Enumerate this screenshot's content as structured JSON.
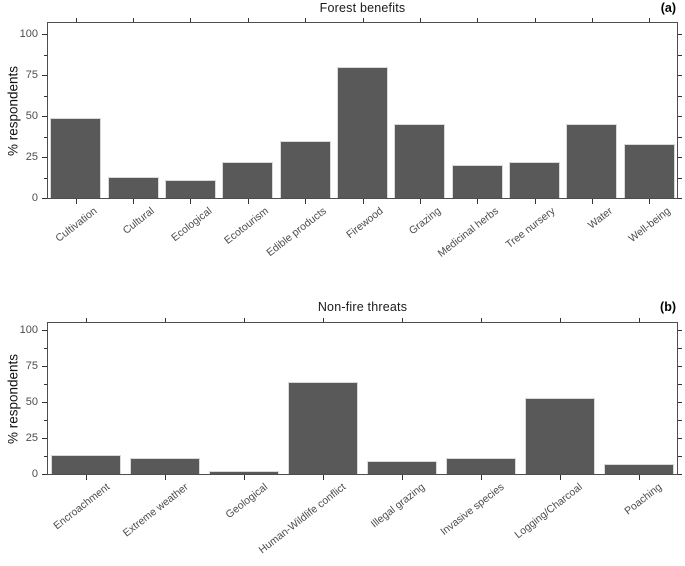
{
  "chart_data": [
    {
      "type": "bar",
      "panel_label": "(a)",
      "title": "Forest benefits",
      "ylabel": "% respondents",
      "xlabel": "",
      "ylim": [
        0,
        100
      ],
      "yticks": [
        0,
        25,
        50,
        75,
        100
      ],
      "grid": "off",
      "legend": "none",
      "bar_color": "#595959",
      "categories": [
        "Cultivation",
        "Cultural",
        "Ecological",
        "Ecotourism",
        "Edible products",
        "Firewood",
        "Grazing",
        "Medicinal herbs",
        "Tree nursery",
        "Water",
        "Well-being"
      ],
      "values": [
        49,
        13,
        11,
        22,
        35,
        80,
        45,
        20,
        22,
        45,
        33
      ]
    },
    {
      "type": "bar",
      "panel_label": "(b)",
      "title": "Non-fire threats",
      "ylabel": "% respondents",
      "xlabel": "",
      "ylim": [
        0,
        100
      ],
      "yticks": [
        0,
        25,
        50,
        75,
        100
      ],
      "grid": "off",
      "legend": "none",
      "bar_color": "#595959",
      "categories": [
        "Encroachment",
        "Extreme weather",
        "Geological",
        "Human-Wildlife conflict",
        "Illegal grazing",
        "Invasive species",
        "Logging/Charcoal",
        "Poaching"
      ],
      "values": [
        13,
        11,
        2,
        64,
        9,
        11,
        53,
        7
      ]
    }
  ]
}
